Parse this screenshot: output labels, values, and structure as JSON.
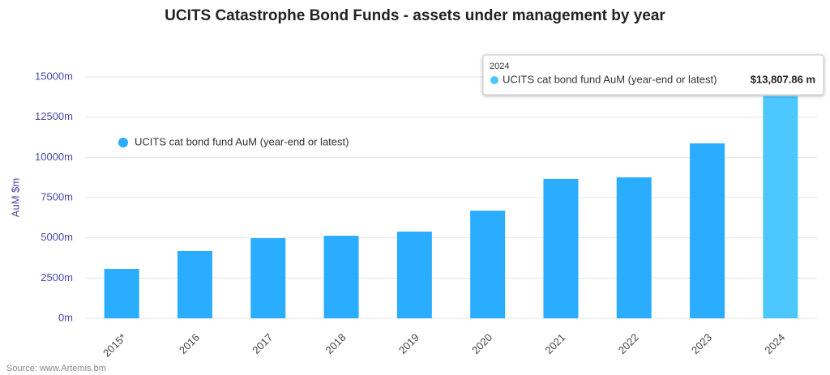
{
  "chart_data": {
    "type": "bar",
    "title": "UCITS Catastrophe Bond Funds - assets under management by year",
    "y_label": "AuM $m",
    "source": "Source: www.Artemis.bm",
    "categories": [
      "2015*",
      "2016",
      "2017",
      "2018",
      "2019",
      "2020",
      "2021",
      "2022",
      "2023",
      "2024"
    ],
    "series": [
      {
        "name": "UCITS cat bond fund AuM (year-end or latest)",
        "color": "#2aacff",
        "values": [
          3070,
          4180,
          4980,
          5130,
          5390,
          6690,
          8660,
          8760,
          10870,
          13807.86
        ],
        "value_labels": [
          null,
          null,
          null,
          null,
          null,
          null,
          null,
          null,
          null,
          "$13,807.86 m"
        ]
      }
    ],
    "hover_index": 9,
    "hover_color": "#4cc8ff",
    "ylim": [
      0,
      15000
    ],
    "yticks": [
      {
        "value": 0,
        "label": "0m"
      },
      {
        "value": 2500,
        "label": "2500m"
      },
      {
        "value": 5000,
        "label": "5000m"
      },
      {
        "value": 7500,
        "label": "7500m"
      },
      {
        "value": 10000,
        "label": "10000m"
      },
      {
        "value": 12500,
        "label": "12500m"
      },
      {
        "value": 15000,
        "label": "15000m"
      }
    ],
    "grid": true,
    "legend": "upper left"
  }
}
